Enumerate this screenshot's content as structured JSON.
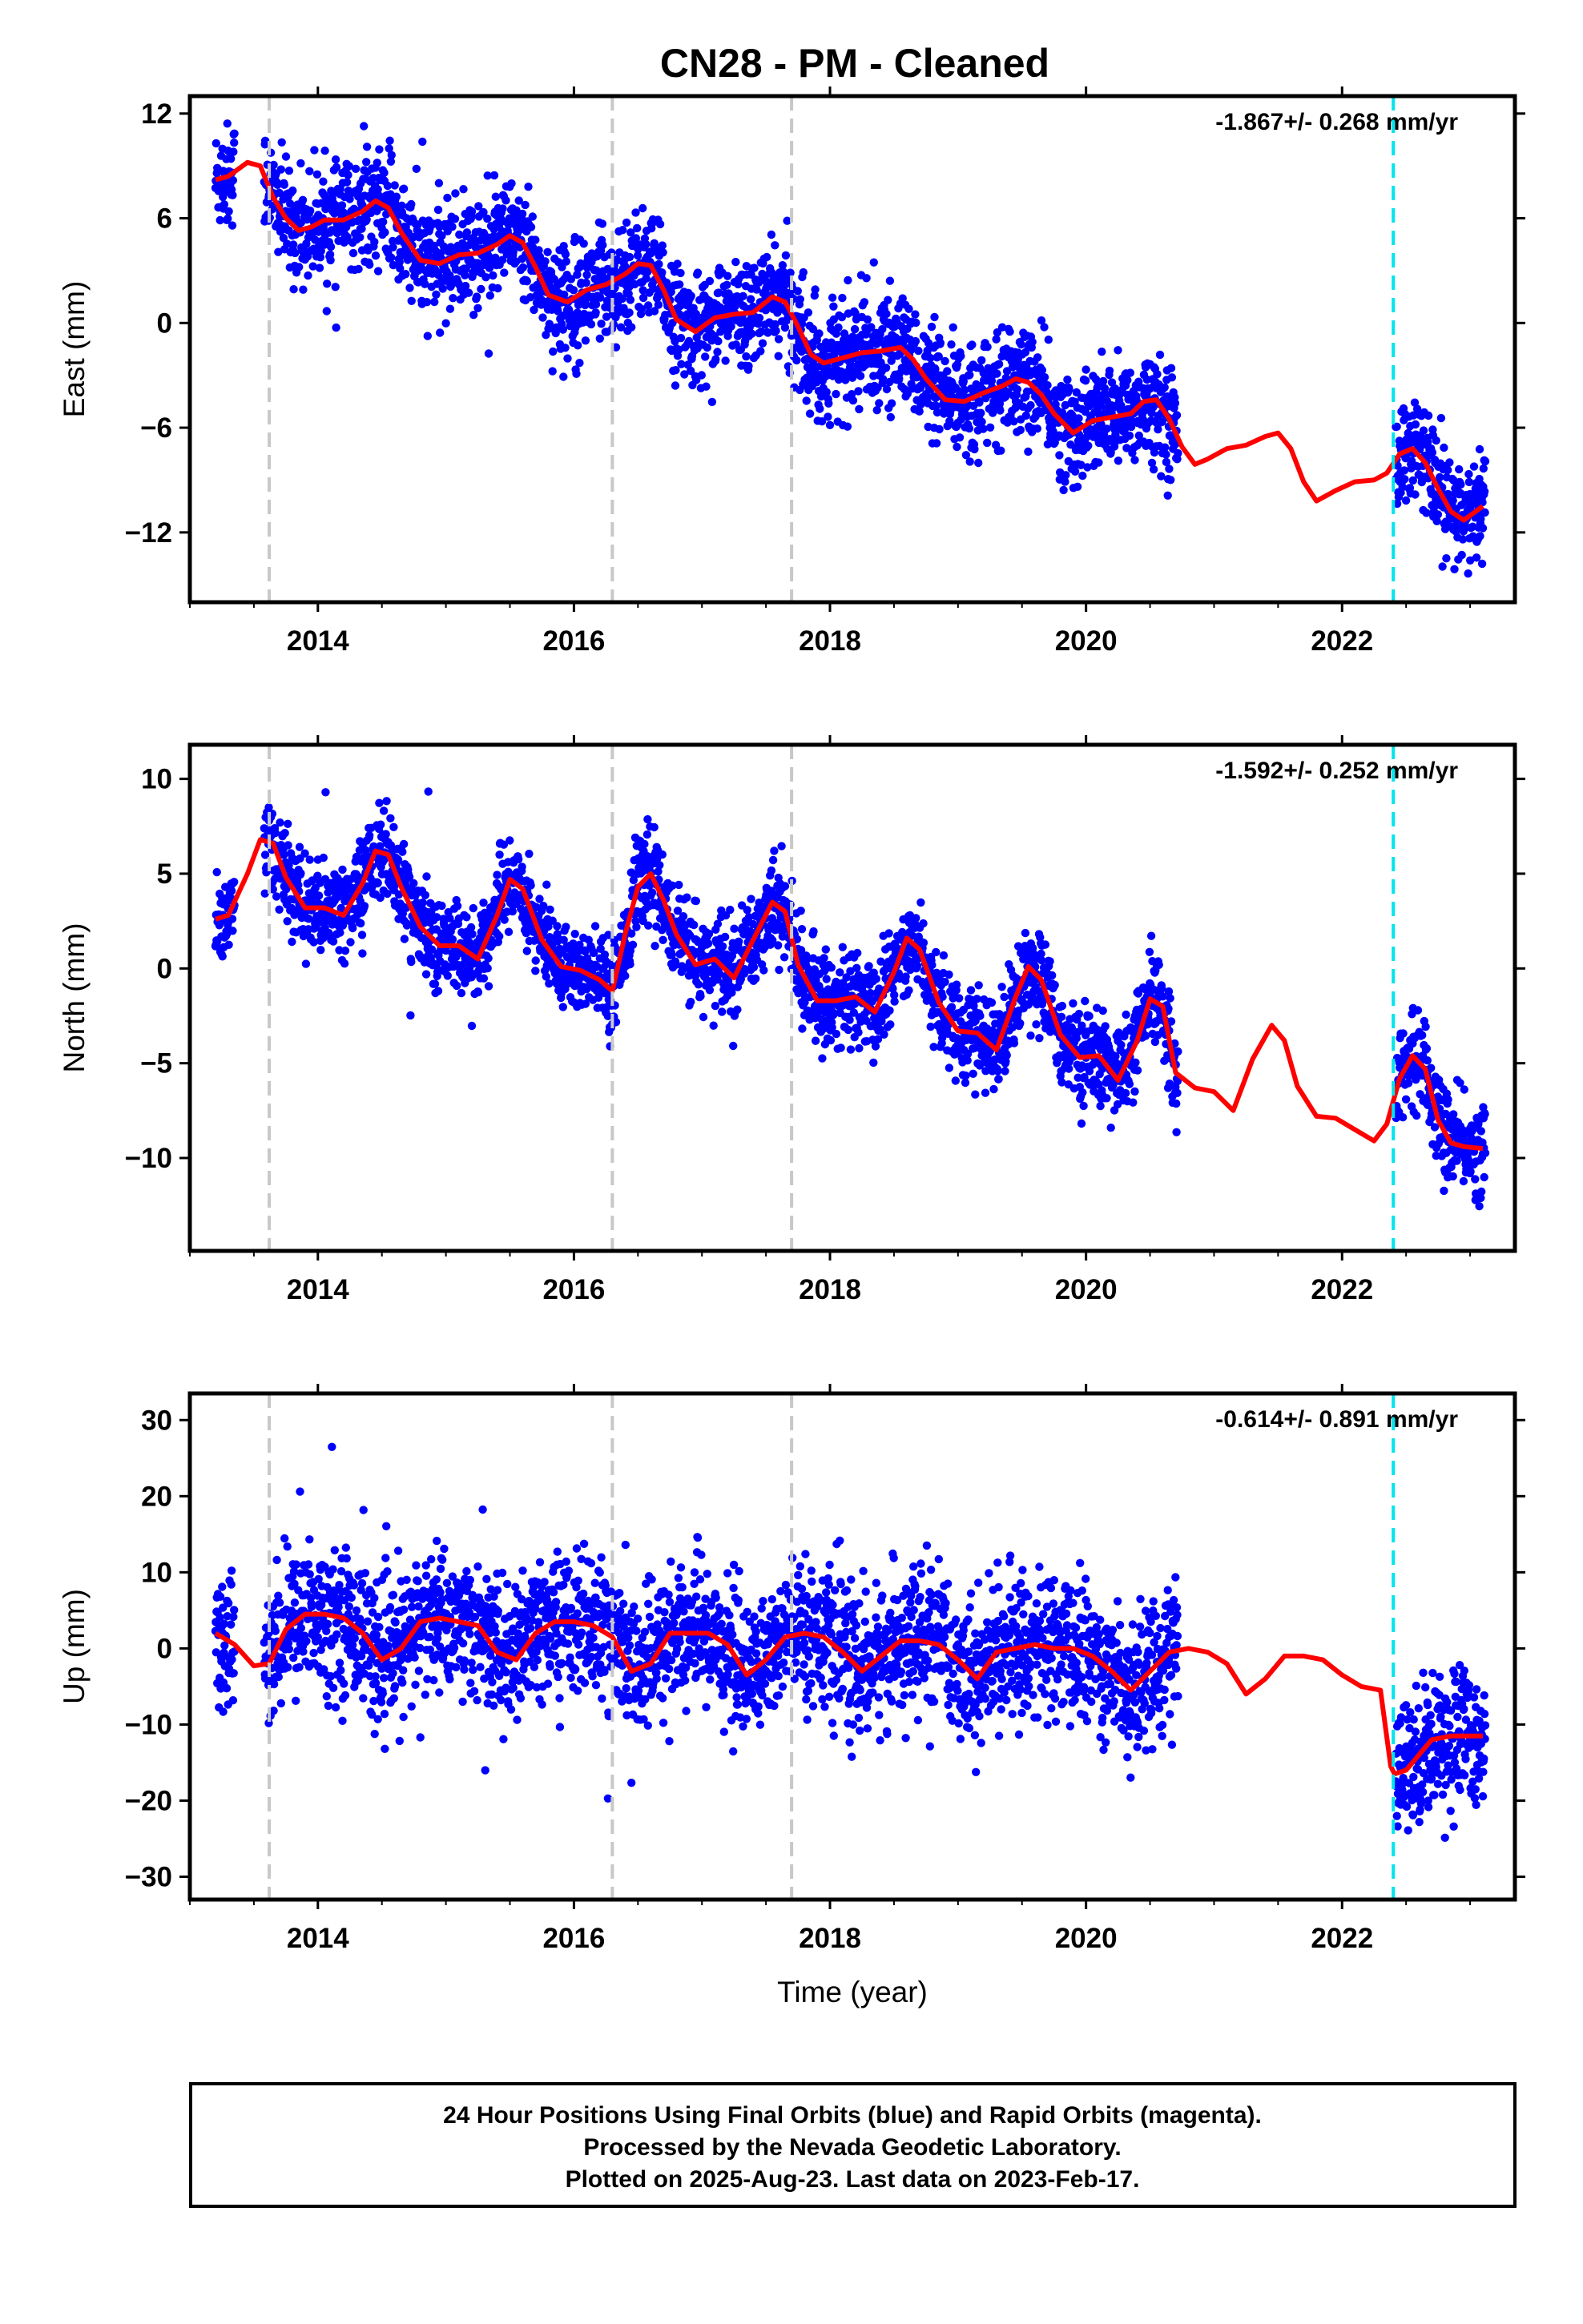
{
  "title": "CN28  - PM - Cleaned",
  "colors": {
    "data_points": "#0000ff",
    "fit_line": "#ff0000",
    "equipment_change": "#c8c8c8",
    "earthquake_marker": "#00e5ee"
  },
  "caption": {
    "line1": "24 Hour Positions Using Final Orbits (blue) and Rapid Orbits (magenta).",
    "line2": "Processed by the Nevada Geodetic Laboratory.",
    "line3": "Plotted on 2025-Aug-23. Last data on 2023-Feb-17."
  },
  "chart_data": [
    {
      "type": "scatter",
      "ylabel": "East (mm)",
      "xlabel": "",
      "rate": "-1.867+/- 0.268 mm/yr",
      "xlim": [
        2013.0,
        2023.35
      ],
      "ylim": [
        -16.0,
        13.0
      ],
      "xticks": [
        2014,
        2016,
        2018,
        2020,
        2022
      ],
      "xtick_labels": [
        "2014",
        "2016",
        "2018",
        "2020",
        "2022"
      ],
      "yticks": [
        12,
        6,
        0,
        -6,
        -12
      ],
      "ytick_labels": [
        "12",
        "6",
        "0",
        "−6",
        "−12"
      ],
      "equipment_changes": [
        2013.62,
        2016.3,
        2017.7
      ],
      "earthquake_markers": [
        2022.4
      ],
      "fit_curve": {
        "x": [
          2013.2,
          2013.3,
          2013.45,
          2013.55,
          2013.65,
          2013.75,
          2013.85,
          2013.95,
          2014.05,
          2014.2,
          2014.35,
          2014.45,
          2014.55,
          2014.65,
          2014.8,
          2014.95,
          2015.1,
          2015.25,
          2015.4,
          2015.5,
          2015.6,
          2015.7,
          2015.8,
          2015.95,
          2016.1,
          2016.25,
          2016.4,
          2016.5,
          2016.6,
          2016.7,
          2016.8,
          2016.95,
          2017.1,
          2017.25,
          2017.4,
          2017.55,
          2017.65,
          2017.75,
          2017.85,
          2017.95,
          2018.1,
          2018.25,
          2018.4,
          2018.55,
          2018.65,
          2018.75,
          2018.9,
          2019.05,
          2019.2,
          2019.35,
          2019.45,
          2019.55,
          2019.65,
          2019.75,
          2019.9,
          2020.05,
          2020.2,
          2020.35,
          2020.45,
          2020.55,
          2020.65,
          2020.75,
          2020.85,
          2020.95,
          2021.1,
          2021.25,
          2021.4,
          2021.5,
          2021.6,
          2021.7,
          2021.8,
          2021.95,
          2022.1,
          2022.25,
          2022.35,
          2022.45,
          2022.55,
          2022.65,
          2022.75,
          2022.85,
          2022.95,
          2023.1
        ],
        "y": [
          8.2,
          8.4,
          9.2,
          9.0,
          7.2,
          6.0,
          5.3,
          5.5,
          5.9,
          5.9,
          6.4,
          7.0,
          6.6,
          5.2,
          3.6,
          3.4,
          3.9,
          4.0,
          4.5,
          5.0,
          4.6,
          3.2,
          1.6,
          1.2,
          1.9,
          2.2,
          2.8,
          3.4,
          3.3,
          1.9,
          0.2,
          -0.5,
          0.3,
          0.5,
          0.6,
          1.5,
          1.2,
          -0.2,
          -1.8,
          -2.3,
          -2.0,
          -1.7,
          -1.6,
          -1.4,
          -2.1,
          -3.2,
          -4.4,
          -4.5,
          -4.0,
          -3.6,
          -3.2,
          -3.4,
          -4.1,
          -5.2,
          -6.3,
          -5.6,
          -5.4,
          -5.2,
          -4.5,
          -4.4,
          -5.5,
          -7.1,
          -8.1,
          -7.8,
          -7.2,
          -7.0,
          -6.5,
          -6.3,
          -7.2,
          -9.1,
          -10.2,
          -9.6,
          -9.1,
          -9.0,
          -8.6,
          -7.5,
          -7.2,
          -8.0,
          -9.5,
          -10.8,
          -11.3,
          -10.5
        ]
      },
      "scatter": {
        "noise": 1.5,
        "outlier_rate": 0.006
      }
    },
    {
      "type": "scatter",
      "ylabel": "North (mm)",
      "xlabel": "",
      "rate": "-1.592+/- 0.252 mm/yr",
      "xlim": [
        2013.0,
        2023.35
      ],
      "ylim": [
        -14.9,
        11.8
      ],
      "xticks": [
        2014,
        2016,
        2018,
        2020,
        2022
      ],
      "xtick_labels": [
        "2014",
        "2016",
        "2018",
        "2020",
        "2022"
      ],
      "yticks": [
        10,
        5,
        0,
        -5,
        -10
      ],
      "ytick_labels": [
        "10",
        "5",
        "0",
        "−5",
        "−10"
      ],
      "equipment_changes": [
        2013.62,
        2016.3,
        2017.7
      ],
      "earthquake_markers": [
        2022.4
      ],
      "fit_curve": {
        "x": [
          2013.2,
          2013.3,
          2013.45,
          2013.55,
          2013.65,
          2013.75,
          2013.9,
          2014.05,
          2014.2,
          2014.35,
          2014.45,
          2014.55,
          2014.65,
          2014.8,
          2014.95,
          2015.1,
          2015.25,
          2015.4,
          2015.5,
          2015.6,
          2015.75,
          2015.9,
          2016.05,
          2016.2,
          2016.3,
          2016.4,
          2016.5,
          2016.6,
          2016.7,
          2016.8,
          2016.95,
          2017.1,
          2017.25,
          2017.4,
          2017.55,
          2017.65,
          2017.75,
          2017.9,
          2018.05,
          2018.2,
          2018.35,
          2018.5,
          2018.6,
          2018.7,
          2018.85,
          2019.0,
          2019.15,
          2019.3,
          2019.45,
          2019.55,
          2019.65,
          2019.8,
          2019.95,
          2020.1,
          2020.25,
          2020.4,
          2020.5,
          2020.6,
          2020.7,
          2020.85,
          2021.0,
          2021.15,
          2021.3,
          2021.45,
          2021.55,
          2021.65,
          2021.8,
          2021.95,
          2022.1,
          2022.25,
          2022.35,
          2022.45,
          2022.55,
          2022.65,
          2022.75,
          2022.85,
          2022.95,
          2023.1
        ],
        "y": [
          2.6,
          2.8,
          5.0,
          6.8,
          6.6,
          4.8,
          3.2,
          3.2,
          2.8,
          4.5,
          6.2,
          6.0,
          4.3,
          2.2,
          1.2,
          1.2,
          0.5,
          2.8,
          4.7,
          4.2,
          1.5,
          0.1,
          -0.1,
          -0.6,
          -1.2,
          1.8,
          4.3,
          5.0,
          3.6,
          1.8,
          0.2,
          0.5,
          -0.5,
          1.5,
          3.5,
          3.0,
          0.2,
          -1.7,
          -1.7,
          -1.5,
          -2.3,
          -0.2,
          1.6,
          1.0,
          -1.8,
          -3.3,
          -3.4,
          -4.3,
          -1.5,
          0.1,
          -0.6,
          -3.5,
          -4.7,
          -4.6,
          -5.9,
          -3.8,
          -1.6,
          -2.0,
          -5.5,
          -6.3,
          -6.5,
          -7.5,
          -4.8,
          -3.0,
          -3.8,
          -6.2,
          -7.8,
          -7.9,
          -8.5,
          -9.1,
          -8.2,
          -5.8,
          -4.6,
          -5.3,
          -8.0,
          -9.2,
          -9.4,
          -9.5
        ]
      },
      "scatter": {
        "noise": 1.2,
        "outlier_rate": 0.006
      }
    },
    {
      "type": "scatter",
      "ylabel": "Up (mm)",
      "xlabel": "Time (year)",
      "rate": "-0.614+/- 0.891 mm/yr",
      "xlim": [
        2013.0,
        2023.35
      ],
      "ylim": [
        -33.0,
        33.5
      ],
      "xticks": [
        2014,
        2016,
        2018,
        2020,
        2022
      ],
      "xtick_labels": [
        "2014",
        "2016",
        "2018",
        "2020",
        "2022"
      ],
      "yticks": [
        30,
        20,
        10,
        0,
        -10,
        -20,
        -30
      ],
      "ytick_labels": [
        "30",
        "20",
        "10",
        "0",
        "−10",
        "−20",
        "−30"
      ],
      "equipment_changes": [
        2013.62,
        2016.3,
        2017.7
      ],
      "earthquake_markers": [
        2022.4
      ],
      "fit_curve": {
        "x": [
          2013.2,
          2013.35,
          2013.5,
          2013.62,
          2013.75,
          2013.9,
          2014.05,
          2014.2,
          2014.35,
          2014.5,
          2014.65,
          2014.8,
          2014.95,
          2015.1,
          2015.25,
          2015.4,
          2015.55,
          2015.7,
          2015.85,
          2016.0,
          2016.15,
          2016.3,
          2016.45,
          2016.6,
          2016.75,
          2016.9,
          2017.05,
          2017.2,
          2017.35,
          2017.5,
          2017.65,
          2017.8,
          2017.95,
          2018.1,
          2018.25,
          2018.4,
          2018.55,
          2018.7,
          2018.85,
          2019.0,
          2019.15,
          2019.3,
          2019.45,
          2019.6,
          2019.75,
          2019.9,
          2020.05,
          2020.2,
          2020.35,
          2020.5,
          2020.65,
          2020.8,
          2020.95,
          2021.1,
          2021.25,
          2021.4,
          2021.55,
          2021.7,
          2021.85,
          2022.0,
          2022.15,
          2022.3,
          2022.38,
          2022.41,
          2022.5,
          2022.6,
          2022.7,
          2022.85,
          2023.0,
          2023.1
        ],
        "y": [
          2.0,
          0.5,
          -2.3,
          -2.0,
          2.5,
          4.5,
          4.5,
          4.0,
          2.0,
          -1.5,
          0.0,
          3.5,
          4.0,
          3.5,
          3.0,
          -0.5,
          -1.5,
          2.0,
          3.5,
          3.5,
          3.0,
          1.5,
          -3.0,
          -2.0,
          2.0,
          2.0,
          2.0,
          0.5,
          -3.5,
          -1.5,
          1.5,
          2.0,
          1.5,
          -0.5,
          -3.0,
          -1.0,
          1.0,
          1.0,
          0.5,
          -1.5,
          -4.0,
          -0.5,
          0.0,
          0.5,
          0.0,
          0.0,
          -1.0,
          -3.0,
          -5.5,
          -3.0,
          -0.5,
          0.0,
          -0.5,
          -2.0,
          -6.0,
          -4.0,
          -1.0,
          -1.0,
          -1.5,
          -3.5,
          -5.0,
          -5.5,
          -15.5,
          -16.5,
          -16.0,
          -14.0,
          -12.0,
          -11.5,
          -11.5,
          -11.5
        ]
      },
      "scatter": {
        "noise": 4.5,
        "outlier_rate": 0.012
      }
    }
  ]
}
